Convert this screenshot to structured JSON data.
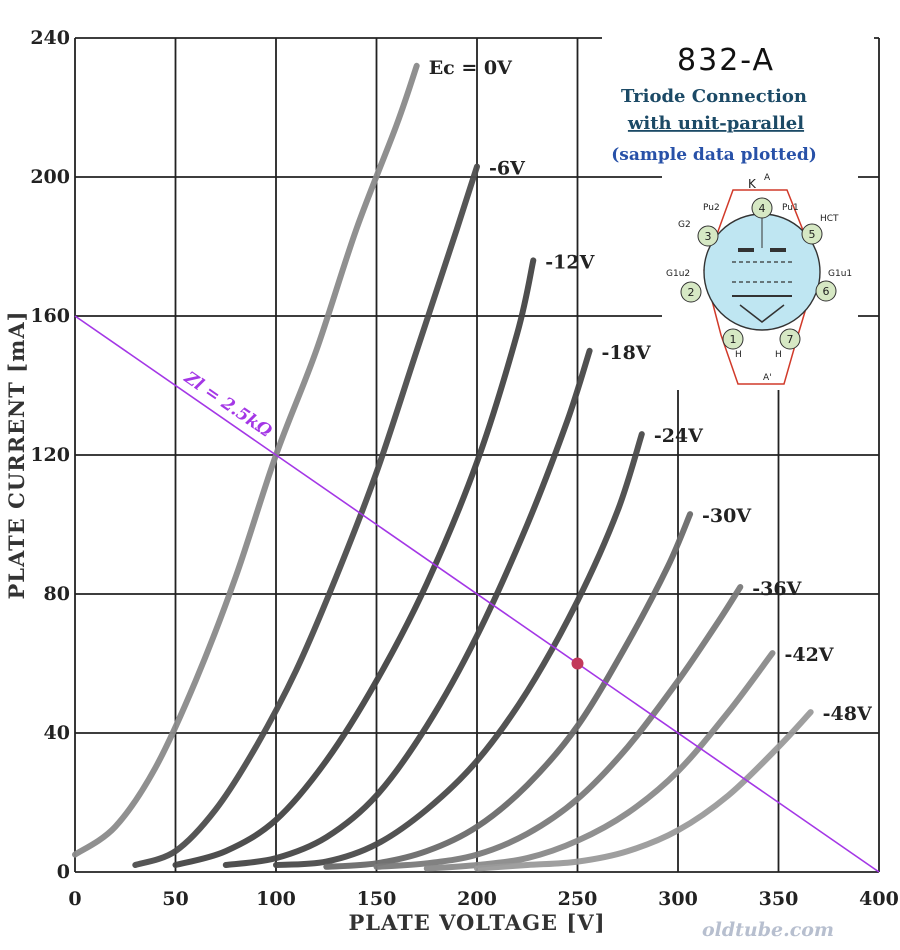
{
  "chart_data": {
    "type": "line",
    "title": "832-A",
    "subtitle_line1": "Triode Connection",
    "subtitle_line2": "with unit-parallel",
    "note": "(sample data plotted)",
    "xlabel": "PLATE VOLTAGE [V]",
    "ylabel": "PLATE CURRENT [mA]",
    "xlim": [
      0,
      400
    ],
    "ylim": [
      0,
      240
    ],
    "x_ticks": [
      "0",
      "50",
      "100",
      "150",
      "200",
      "250",
      "300",
      "350",
      "400"
    ],
    "y_ticks": [
      "0",
      "40",
      "80",
      "120",
      "160",
      "200",
      "240"
    ],
    "grid": true,
    "series": [
      {
        "name": "Ec = 0V",
        "points": [
          [
            0,
            5
          ],
          [
            20,
            13
          ],
          [
            40,
            30
          ],
          [
            60,
            55
          ],
          [
            80,
            85
          ],
          [
            100,
            120
          ],
          [
            120,
            150
          ],
          [
            140,
            185
          ],
          [
            160,
            215
          ],
          [
            170,
            232
          ]
        ]
      },
      {
        "name": "-6V",
        "points": [
          [
            30,
            2
          ],
          [
            50,
            6
          ],
          [
            70,
            18
          ],
          [
            90,
            36
          ],
          [
            110,
            58
          ],
          [
            130,
            85
          ],
          [
            150,
            115
          ],
          [
            170,
            150
          ],
          [
            190,
            185
          ],
          [
            200,
            203
          ]
        ]
      },
      {
        "name": "-12V",
        "points": [
          [
            50,
            2
          ],
          [
            75,
            6
          ],
          [
            100,
            15
          ],
          [
            125,
            32
          ],
          [
            150,
            55
          ],
          [
            175,
            83
          ],
          [
            200,
            118
          ],
          [
            220,
            155
          ],
          [
            228,
            176
          ]
        ]
      },
      {
        "name": "-18V",
        "points": [
          [
            75,
            2
          ],
          [
            100,
            4
          ],
          [
            125,
            10
          ],
          [
            150,
            22
          ],
          [
            175,
            42
          ],
          [
            200,
            68
          ],
          [
            225,
            100
          ],
          [
            245,
            130
          ],
          [
            256,
            150
          ]
        ]
      },
      {
        "name": "-24V",
        "points": [
          [
            100,
            2
          ],
          [
            125,
            3
          ],
          [
            150,
            8
          ],
          [
            175,
            18
          ],
          [
            200,
            32
          ],
          [
            225,
            52
          ],
          [
            250,
            78
          ],
          [
            270,
            104
          ],
          [
            282,
            126
          ]
        ]
      },
      {
        "name": "-30V",
        "points": [
          [
            125,
            1.5
          ],
          [
            150,
            2.5
          ],
          [
            175,
            6
          ],
          [
            200,
            13
          ],
          [
            225,
            25
          ],
          [
            250,
            42
          ],
          [
            275,
            66
          ],
          [
            295,
            88
          ],
          [
            306,
            103
          ]
        ]
      },
      {
        "name": "-36V",
        "points": [
          [
            150,
            1.5
          ],
          [
            175,
            2.5
          ],
          [
            200,
            5
          ],
          [
            225,
            11
          ],
          [
            250,
            21
          ],
          [
            275,
            36
          ],
          [
            300,
            55
          ],
          [
            320,
            72
          ],
          [
            331,
            82
          ]
        ]
      },
      {
        "name": "-42V",
        "points": [
          [
            175,
            1
          ],
          [
            200,
            2
          ],
          [
            225,
            4
          ],
          [
            250,
            9
          ],
          [
            275,
            17
          ],
          [
            300,
            29
          ],
          [
            325,
            46
          ],
          [
            347,
            63
          ]
        ]
      },
      {
        "name": "-48V",
        "points": [
          [
            200,
            1
          ],
          [
            225,
            2
          ],
          [
            250,
            3
          ],
          [
            275,
            6
          ],
          [
            300,
            12
          ],
          [
            325,
            22
          ],
          [
            350,
            36
          ],
          [
            366,
            46
          ]
        ]
      }
    ],
    "load_line": {
      "label": "Zl = 2.5kΩ",
      "points": [
        [
          0,
          160
        ],
        [
          400,
          0
        ]
      ],
      "color": "#a437e6"
    },
    "operating_point": {
      "x": 250,
      "y": 60,
      "color": "#c23a5a"
    }
  },
  "tube_diagram": {
    "pins": [
      "1",
      "2",
      "3",
      "4",
      "5",
      "6",
      "7"
    ],
    "labels": {
      "k": "K",
      "a": "A",
      "a_prime": "A'",
      "pu2": "Pu2",
      "pu1": "Pu1",
      "g2": "G2",
      "hct": "HCT",
      "g1u2": "G1u2",
      "g1u1": "G1u1",
      "h_left": "H",
      "h_right": "H"
    }
  },
  "watermark": "oldtube.com"
}
